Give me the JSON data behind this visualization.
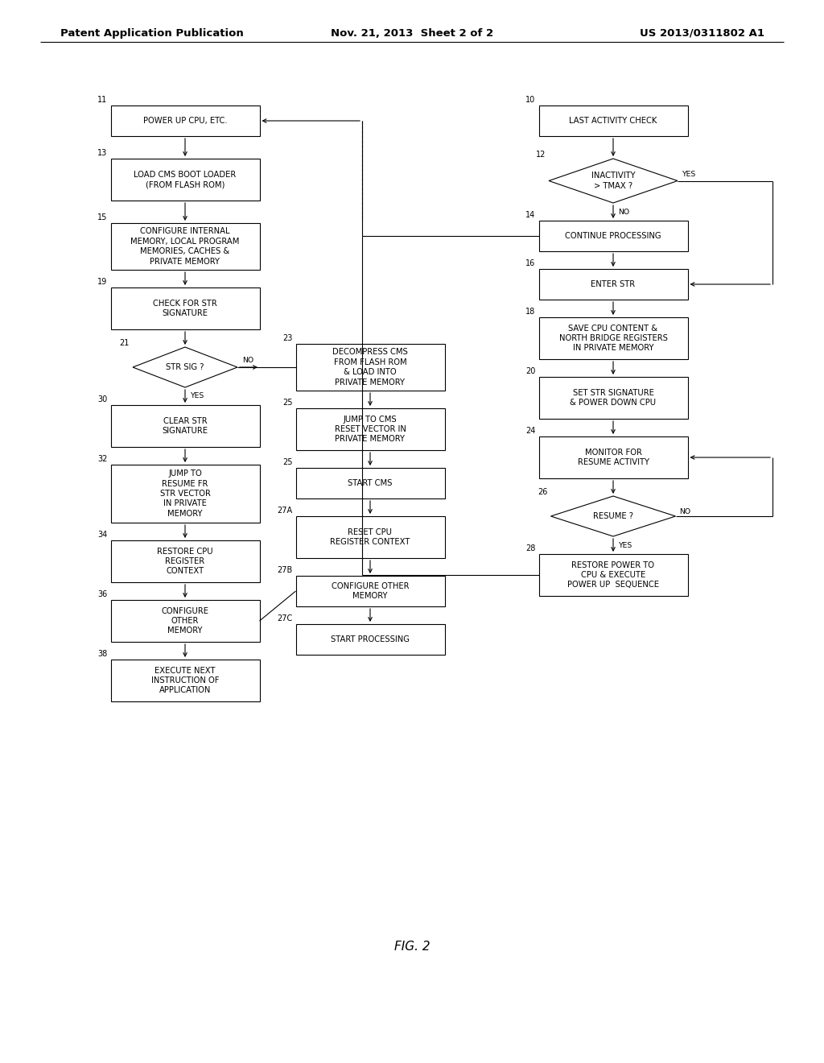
{
  "title_left": "Patent Application Publication",
  "title_mid": "Nov. 21, 2013  Sheet 2 of 2",
  "title_right": "US 2013/0311802 A1",
  "fig_label": "FIG. 2",
  "background": "#ffffff",
  "box_facecolor": "#ffffff",
  "box_edgecolor": "#000000",
  "text_color": "#000000",
  "font_size": 7.2,
  "label_font_size": 7.0,
  "header_font_size": 9.5
}
